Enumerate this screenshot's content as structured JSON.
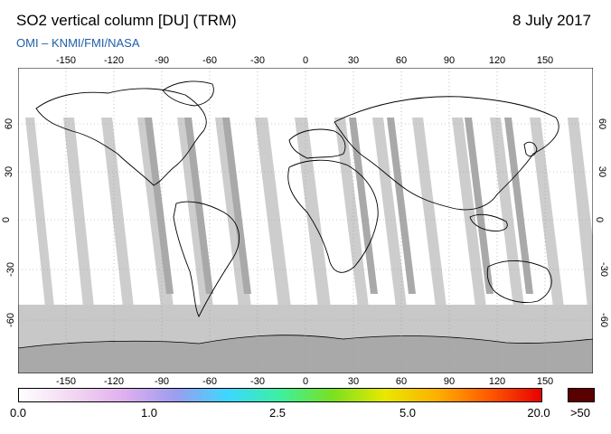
{
  "header": {
    "title": "SO2 vertical column [DU] (TRM)",
    "date": "8 July 2017",
    "credit": "OMI  –  KNMI/FMI/NASA"
  },
  "map": {
    "lon_ticks": [
      "-150",
      "-120",
      "-90",
      "-60",
      "-30",
      "0",
      "30",
      "60",
      "90",
      "120",
      "150"
    ],
    "lat_ticks": [
      "60",
      "30",
      "0",
      "-30",
      "-60"
    ],
    "colors": {
      "ocean_no_data": "#ffffff",
      "orbit_gap": "#cccccc",
      "overlap_swath": "#a9a9a9",
      "polar_no_data": "#c8c8c8",
      "land_outline": "#000000",
      "grid": "#9a9a9a"
    }
  },
  "colorbar": {
    "labels": [
      "0.0",
      "1.0",
      "2.5",
      "5.0",
      "20.0"
    ],
    "over_label": ">50",
    "over_color": "#5a0000",
    "gradient_colors": [
      "#ffffff",
      "#f2d8f2",
      "#e0b0ee",
      "#9c9cf0",
      "#3cd8ff",
      "#3cf0a0",
      "#7ae020",
      "#e8e800",
      "#ffb000",
      "#ff5a00",
      "#e80000"
    ]
  }
}
